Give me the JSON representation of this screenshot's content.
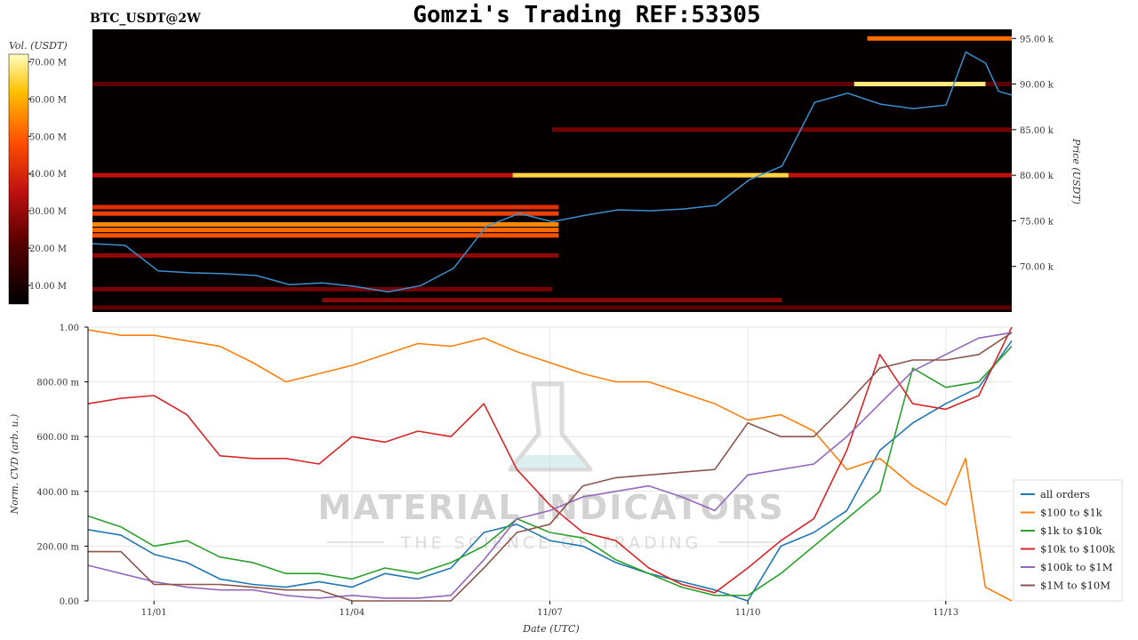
{
  "header": {
    "symbol": "BTC_USDT@2W",
    "title": "Gomzi's Trading REF:53305"
  },
  "watermark": {
    "main": "MATERIAL INDICATORS",
    "sub": "THE SCIENCE OF TRADING"
  },
  "colors": {
    "all_orders": "#1f77b4",
    "usd100_1k": "#ff7f0e",
    "usd1k_10k": "#2ca02c",
    "usd10k_100k": "#d62728",
    "usd100k_1m": "#9467bd",
    "usd1m_10m": "#8c564b",
    "price_line": "#3a8fd0",
    "heatmap_bg": "#050000"
  },
  "chart_data": [
    {
      "type": "heatmap",
      "colorbar": {
        "label": "Vol. (USDT)",
        "ticks": [
          "10.00 M",
          "20.00 M",
          "30.00 M",
          "40.00 M",
          "50.00 M",
          "60.00 M",
          "70.00 M"
        ],
        "tick_values": [
          10,
          20,
          30,
          40,
          50,
          60,
          70
        ],
        "range": [
          5,
          72
        ]
      },
      "ylabel": "Price (USDT)",
      "y_ticks": [
        "70.00 k",
        "75.00 k",
        "80.00 k",
        "85.00 k",
        "90.00 k",
        "95.00 k"
      ],
      "y_tick_values": [
        70000,
        75000,
        80000,
        85000,
        90000,
        95000
      ],
      "ylim": [
        65000,
        96000
      ],
      "xlim": [
        0,
        14
      ],
      "price": {
        "x": [
          0,
          0.5,
          1,
          1.5,
          2,
          2.5,
          3,
          3.5,
          4,
          4.5,
          5,
          5.5,
          6,
          6.5,
          7,
          7.5,
          8,
          8.5,
          9,
          9.5,
          10,
          10.5,
          11,
          11.5,
          12,
          12.5,
          13,
          13.3,
          13.6,
          13.8,
          14
        ],
        "y": [
          72500,
          72300,
          69500,
          69300,
          69200,
          69000,
          68000,
          68200,
          67800,
          67200,
          67900,
          69800,
          74400,
          75800,
          74900,
          75600,
          76200,
          76100,
          76300,
          76700,
          79500,
          81000,
          88000,
          89000,
          87800,
          87300,
          87700,
          93500,
          92300,
          89200,
          88800
        ]
      },
      "bands": [
        {
          "price": 90000,
          "x0": 0,
          "x1": 14,
          "level": 0.25
        },
        {
          "price": 90000,
          "x0": 11.6,
          "x1": 13.6,
          "level": 0.95
        },
        {
          "price": 95000,
          "x0": 11.8,
          "x1": 14,
          "level": 0.7
        },
        {
          "price": 85000,
          "x0": 7,
          "x1": 14,
          "level": 0.3
        },
        {
          "price": 80000,
          "x0": 0,
          "x1": 14,
          "level": 0.45
        },
        {
          "price": 80000,
          "x0": 6.4,
          "x1": 10.6,
          "level": 0.9
        },
        {
          "price": 76500,
          "x0": 0,
          "x1": 7.1,
          "level": 0.55
        },
        {
          "price": 75800,
          "x0": 0,
          "x1": 7.1,
          "level": 0.6
        },
        {
          "price": 74600,
          "x0": 0,
          "x1": 7.1,
          "level": 0.75
        },
        {
          "price": 74000,
          "x0": 0,
          "x1": 7.1,
          "level": 0.7
        },
        {
          "price": 73400,
          "x0": 0,
          "x1": 7.1,
          "level": 0.65
        },
        {
          "price": 71200,
          "x0": 0,
          "x1": 7.1,
          "level": 0.35
        },
        {
          "price": 67500,
          "x0": 0,
          "x1": 7.0,
          "level": 0.3
        },
        {
          "price": 66300,
          "x0": 3.5,
          "x1": 10.5,
          "level": 0.35
        },
        {
          "price": 65500,
          "x0": 0,
          "x1": 14,
          "level": 0.25
        }
      ]
    },
    {
      "type": "line",
      "ylabel": "Norm. CVD (arb. u.)",
      "xlabel": "Date (UTC)",
      "x_ticks": [
        "11/01",
        "11/04",
        "11/07",
        "11/10",
        "11/13"
      ],
      "x_tick_values": [
        1,
        4,
        7,
        10,
        13
      ],
      "y_ticks": [
        "0.00",
        "200.00 m",
        "400.00 m",
        "600.00 m",
        "800.00 m",
        "1.00"
      ],
      "y_tick_values": [
        0,
        0.2,
        0.4,
        0.6,
        0.8,
        1.0
      ],
      "xlim": [
        0,
        14
      ],
      "ylim": [
        0,
        1
      ],
      "grid": true,
      "legend_position": "bottom-right outside",
      "series": [
        {
          "name": "all orders",
          "color_key": "all_orders",
          "x": [
            0,
            0.5,
            1,
            1.5,
            2,
            2.5,
            3,
            3.5,
            4,
            4.5,
            5,
            5.5,
            6,
            6.5,
            7,
            7.5,
            8,
            8.5,
            9,
            9.5,
            10,
            10.5,
            11,
            11.5,
            12,
            12.5,
            13,
            13.5,
            14
          ],
          "y": [
            0.26,
            0.24,
            0.17,
            0.14,
            0.08,
            0.06,
            0.05,
            0.07,
            0.05,
            0.1,
            0.08,
            0.12,
            0.25,
            0.28,
            0.22,
            0.2,
            0.14,
            0.1,
            0.07,
            0.04,
            0.0,
            0.2,
            0.25,
            0.33,
            0.55,
            0.65,
            0.72,
            0.78,
            0.95
          ]
        },
        {
          "name": "$100 to $1k",
          "color_key": "usd100_1k",
          "x": [
            0,
            0.5,
            1,
            1.5,
            2,
            2.5,
            3,
            3.5,
            4,
            4.5,
            5,
            5.5,
            6,
            6.5,
            7,
            7.5,
            8,
            8.5,
            9,
            9.5,
            10,
            10.5,
            11,
            11.5,
            12,
            12.5,
            13,
            13.3,
            13.6,
            14
          ],
          "y": [
            0.99,
            0.97,
            0.97,
            0.95,
            0.93,
            0.87,
            0.8,
            0.83,
            0.86,
            0.9,
            0.94,
            0.93,
            0.96,
            0.91,
            0.87,
            0.83,
            0.8,
            0.8,
            0.76,
            0.72,
            0.66,
            0.68,
            0.62,
            0.48,
            0.52,
            0.42,
            0.35,
            0.52,
            0.05,
            0.0
          ]
        },
        {
          "name": "$1k to $10k",
          "color_key": "usd1k_10k",
          "x": [
            0,
            0.5,
            1,
            1.5,
            2,
            2.5,
            3,
            3.5,
            4,
            4.5,
            5,
            5.5,
            6,
            6.5,
            7,
            7.5,
            8,
            8.5,
            9,
            9.5,
            10,
            10.5,
            11,
            11.5,
            12,
            12.5,
            13,
            13.5,
            14
          ],
          "y": [
            0.31,
            0.27,
            0.2,
            0.22,
            0.16,
            0.14,
            0.1,
            0.1,
            0.08,
            0.12,
            0.1,
            0.14,
            0.2,
            0.3,
            0.25,
            0.23,
            0.15,
            0.1,
            0.05,
            0.02,
            0.02,
            0.1,
            0.2,
            0.3,
            0.4,
            0.85,
            0.78,
            0.8,
            0.93
          ]
        },
        {
          "name": "$10k to $100k",
          "color_key": "usd10k_100k",
          "x": [
            0,
            0.5,
            1,
            1.5,
            2,
            2.5,
            3,
            3.5,
            4,
            4.5,
            5,
            5.5,
            6,
            6.5,
            7,
            7.5,
            8,
            8.5,
            9,
            9.5,
            10,
            10.5,
            11,
            11.5,
            12,
            12.5,
            13,
            13.5,
            14
          ],
          "y": [
            0.72,
            0.74,
            0.75,
            0.68,
            0.53,
            0.52,
            0.52,
            0.5,
            0.6,
            0.58,
            0.62,
            0.6,
            0.72,
            0.48,
            0.35,
            0.25,
            0.22,
            0.12,
            0.06,
            0.03,
            0.12,
            0.22,
            0.3,
            0.55,
            0.9,
            0.72,
            0.7,
            0.75,
            1.0
          ]
        },
        {
          "name": "$100k to $1M",
          "color_key": "usd100k_1m",
          "x": [
            0,
            0.5,
            1,
            1.5,
            2,
            2.5,
            3,
            3.5,
            4,
            4.5,
            5,
            5.5,
            6,
            6.5,
            7,
            7.5,
            8,
            8.5,
            9,
            9.5,
            10,
            10.5,
            11,
            11.5,
            12,
            12.5,
            13,
            13.5,
            14
          ],
          "y": [
            0.13,
            0.1,
            0.07,
            0.05,
            0.04,
            0.04,
            0.02,
            0.01,
            0.02,
            0.01,
            0.01,
            0.02,
            0.15,
            0.3,
            0.33,
            0.38,
            0.4,
            0.42,
            0.38,
            0.33,
            0.46,
            0.48,
            0.5,
            0.6,
            0.72,
            0.84,
            0.9,
            0.96,
            0.98
          ]
        },
        {
          "name": "$1M to $10M",
          "color_key": "usd1m_10m",
          "x": [
            0,
            0.5,
            1,
            1.5,
            2,
            2.5,
            3,
            3.5,
            4,
            4.5,
            5,
            5.5,
            6,
            6.5,
            7,
            7.5,
            8,
            8.5,
            9,
            9.5,
            10,
            10.5,
            11,
            11.5,
            12,
            12.5,
            13,
            13.5,
            14
          ],
          "y": [
            0.18,
            0.18,
            0.06,
            0.06,
            0.06,
            0.05,
            0.04,
            0.04,
            0.0,
            0.0,
            0.0,
            0.0,
            0.12,
            0.25,
            0.28,
            0.42,
            0.45,
            0.46,
            0.47,
            0.48,
            0.65,
            0.6,
            0.6,
            0.72,
            0.85,
            0.88,
            0.88,
            0.9,
            0.98
          ]
        }
      ]
    }
  ]
}
